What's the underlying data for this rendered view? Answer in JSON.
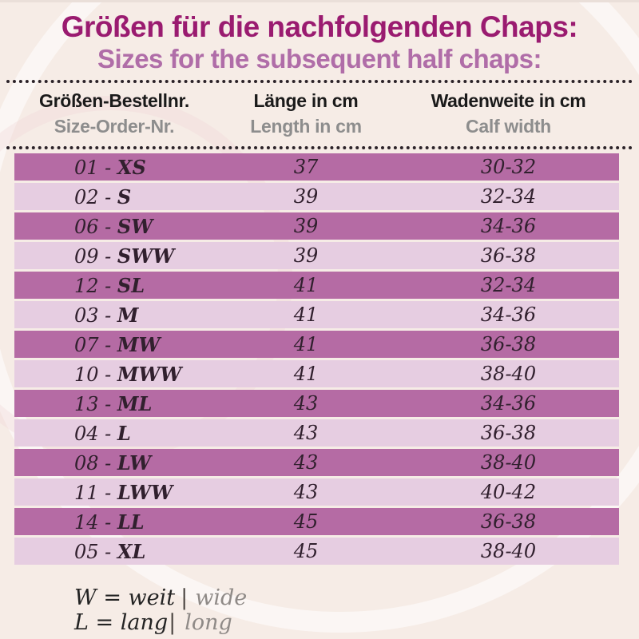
{
  "header": {
    "title_de": "Größen für die nachfolgenden Chaps:",
    "title_en": "Sizes for the subsequent half chaps:"
  },
  "table": {
    "separator": " - ",
    "columns": [
      {
        "de": "Größen-Bestellnr.",
        "en": "Size-Order-Nr."
      },
      {
        "de": "Länge in cm",
        "en": "Length in cm"
      },
      {
        "de": "Wadenweite in cm",
        "en": "Calf width"
      }
    ],
    "rows": [
      {
        "order": "01",
        "size": "XS",
        "length": "37",
        "calf": "30-32"
      },
      {
        "order": "02",
        "size": "S",
        "length": "39",
        "calf": "32-34"
      },
      {
        "order": "06",
        "size": "SW",
        "length": "39",
        "calf": "34-36"
      },
      {
        "order": "09",
        "size": "SWW",
        "length": "39",
        "calf": "36-38"
      },
      {
        "order": "12",
        "size": "SL",
        "length": "41",
        "calf": "32-34"
      },
      {
        "order": "03",
        "size": "M",
        "length": "41",
        "calf": "34-36"
      },
      {
        "order": "07",
        "size": "MW",
        "length": "41",
        "calf": "36-38"
      },
      {
        "order": "10",
        "size": "MWW",
        "length": "41",
        "calf": "38-40"
      },
      {
        "order": "13",
        "size": "ML",
        "length": "43",
        "calf": "34-36"
      },
      {
        "order": "04",
        "size": "L",
        "length": "43",
        "calf": "36-38"
      },
      {
        "order": "08",
        "size": "LW",
        "length": "43",
        "calf": "38-40"
      },
      {
        "order": "11",
        "size": "LWW",
        "length": "43",
        "calf": "40-42"
      },
      {
        "order": "14",
        "size": "LL",
        "length": "45",
        "calf": "36-38"
      },
      {
        "order": "05",
        "size": "XL",
        "length": "45",
        "calf": "38-40"
      }
    ]
  },
  "legend": {
    "lines": [
      {
        "abbr": "W = weit",
        "pipe": "|",
        "translation": "wide"
      },
      {
        "abbr": "L = lang",
        "pipe": "|",
        "translation": "long"
      }
    ]
  },
  "colors": {
    "background": "#f6ece6",
    "title_de": "#9a1b70",
    "title_en": "#b06da8",
    "header_de": "#1a1a1a",
    "header_en": "#8d8d8d",
    "row_dark": "#b56ba4",
    "row_light": "#e6cde1",
    "row_text": "#31202e",
    "dots": "#2b2228",
    "legend_translation": "#8f8a87"
  }
}
